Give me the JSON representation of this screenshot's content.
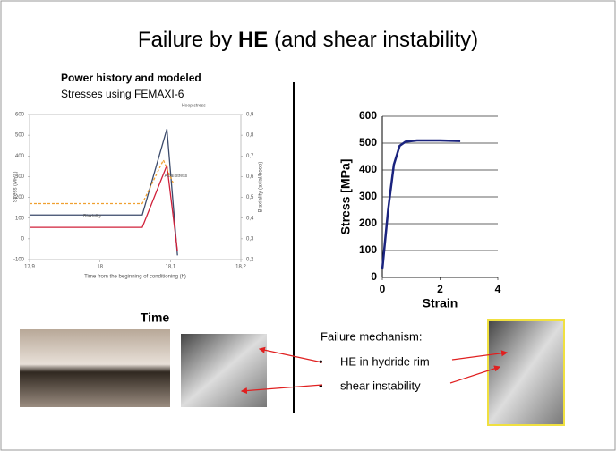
{
  "title": {
    "before": "Failure by ",
    "bold": "HE",
    "after": " (and shear instability)"
  },
  "left_caption": {
    "line1": "Power history and modeled",
    "line2": "Stresses using FEMAXI-6"
  },
  "time_label": "Time",
  "failure_text": {
    "heading": "Failure mechanism:",
    "bullets": [
      "HE in hydride rim",
      "shear instability"
    ]
  },
  "chart_data": [
    {
      "type": "line",
      "xlabel": "Time from the beginning of conditioning (h)",
      "ylabel": "Stress (MPa)",
      "y2label": "Biaxiality (axial/hoop)",
      "xlim": [
        17.9,
        18.2
      ],
      "xticks": [
        {
          "value": 17.9,
          "label": "17,9"
        },
        18,
        {
          "value": 18.1,
          "label": "18,1"
        },
        {
          "value": 18.2,
          "label": "18,2"
        }
      ],
      "ylim": [
        -100,
        600
      ],
      "yticks": [
        -100,
        0,
        100,
        200,
        300,
        400,
        500,
        600
      ],
      "y2lim": [
        0.2,
        0.9
      ],
      "y2ticks": [
        {
          "value": 0.2,
          "label": "0,2"
        },
        {
          "value": 0.3,
          "label": "0,3"
        },
        {
          "value": 0.4,
          "label": "0,4"
        },
        {
          "value": 0.5,
          "label": "0,5"
        },
        {
          "value": 0.6,
          "label": "0,6"
        },
        {
          "value": 0.7,
          "label": "0,7"
        },
        {
          "value": 0.8,
          "label": "0,8"
        },
        {
          "value": 0.9,
          "label": "0,9"
        }
      ],
      "series": [
        {
          "name": "Hoop stress",
          "color": "#3b4a6b",
          "x": [
            17.9,
            18.06,
            18.095,
            18.11
          ],
          "values": [
            115,
            115,
            530,
            -80
          ]
        },
        {
          "name": "Axial stress",
          "color": "#d0203a",
          "x": [
            17.9,
            18.06,
            18.095,
            18.11
          ],
          "values": [
            55,
            55,
            355,
            -60
          ]
        },
        {
          "name": "Biaxiality",
          "color": "#f0a030",
          "axis": "y2",
          "dashed": true,
          "x": [
            17.9,
            18.06,
            18.09,
            18.105
          ],
          "values": [
            0.47,
            0.47,
            0.68,
            0.56
          ]
        }
      ]
    },
    {
      "type": "line",
      "xlabel": "Strain",
      "ylabel": "Stress [MPa]",
      "xlim": [
        0,
        4
      ],
      "xticks": [
        0,
        2,
        4
      ],
      "ylim": [
        0,
        600
      ],
      "yticks": [
        0,
        100,
        200,
        300,
        400,
        500,
        600
      ],
      "grid": true,
      "series": [
        {
          "color": "#1a237e",
          "x": [
            0,
            0.2,
            0.4,
            0.6,
            0.8,
            1.2,
            2,
            2.7
          ],
          "values": [
            30,
            250,
            420,
            490,
            505,
            510,
            510,
            508
          ]
        }
      ]
    }
  ]
}
